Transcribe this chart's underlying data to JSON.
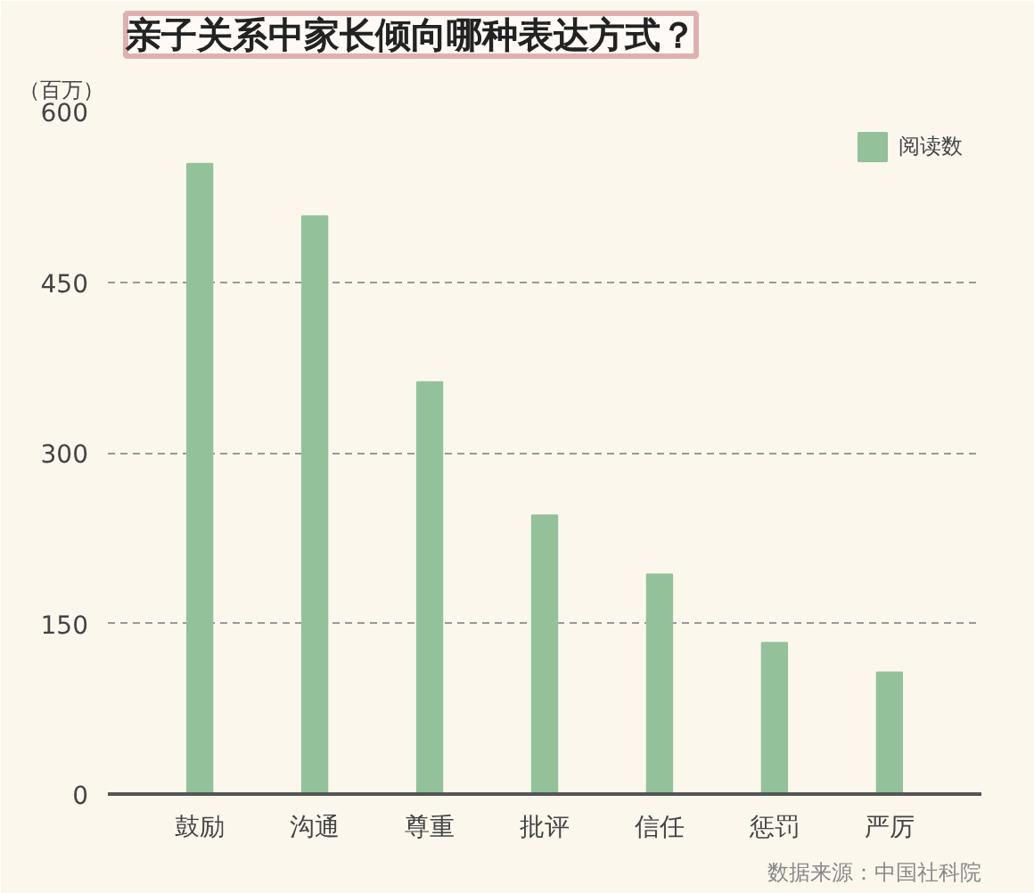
{
  "chart_data": {
    "type": "bar",
    "title": "亲子关系中家长倾向哪种表达方式？",
    "ylabel": "（百万）",
    "categories": [
      "鼓励",
      "沟通",
      "尊重",
      "批评",
      "信任",
      "惩罚",
      "严厉"
    ],
    "series": [
      {
        "name": "阅读数",
        "color": "#93c29a",
        "values": [
          554,
          508,
          362,
          245,
          193,
          133,
          107
        ]
      }
    ],
    "ylim": [
      0,
      600
    ],
    "yticks": [
      0,
      150,
      300,
      450,
      600
    ],
    "grid": "y",
    "legend": "top right",
    "annotations": [
      "数据来源：中国社科院"
    ]
  }
}
